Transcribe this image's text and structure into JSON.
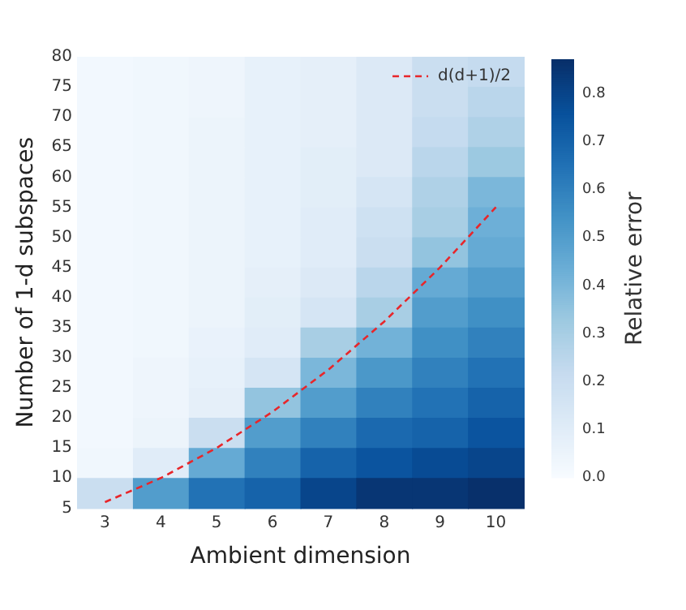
{
  "chart_data": {
    "type": "heatmap",
    "xlabel": "Ambient dimension",
    "ylabel": "Number of 1-d subspaces",
    "clabel": "Relative error",
    "categories": [
      "3",
      "4",
      "5",
      "6",
      "7",
      "8",
      "9",
      "10"
    ],
    "ylim": [
      5,
      80
    ],
    "yticks": [
      5,
      10,
      15,
      20,
      25,
      30,
      35,
      40,
      45,
      50,
      55,
      60,
      65,
      70,
      75,
      80
    ],
    "cells": [
      [
        0.02,
        0.03,
        0.04,
        0.07,
        0.08,
        0.12,
        0.2,
        0.22
      ],
      [
        0.02,
        0.03,
        0.04,
        0.07,
        0.08,
        0.12,
        0.2,
        0.25
      ],
      [
        0.02,
        0.03,
        0.05,
        0.07,
        0.08,
        0.12,
        0.22,
        0.28
      ],
      [
        0.02,
        0.03,
        0.05,
        0.07,
        0.09,
        0.12,
        0.25,
        0.33
      ],
      [
        0.02,
        0.03,
        0.05,
        0.07,
        0.09,
        0.15,
        0.28,
        0.4
      ],
      [
        0.02,
        0.03,
        0.05,
        0.07,
        0.1,
        0.18,
        0.3,
        0.43
      ],
      [
        0.02,
        0.03,
        0.05,
        0.07,
        0.1,
        0.2,
        0.35,
        0.45
      ],
      [
        0.02,
        0.03,
        0.05,
        0.08,
        0.12,
        0.25,
        0.45,
        0.5
      ],
      [
        0.02,
        0.03,
        0.05,
        0.09,
        0.15,
        0.3,
        0.5,
        0.55
      ],
      [
        0.02,
        0.03,
        0.06,
        0.1,
        0.3,
        0.42,
        0.55,
        0.6
      ],
      [
        0.02,
        0.04,
        0.07,
        0.15,
        0.4,
        0.52,
        0.6,
        0.65
      ],
      [
        0.02,
        0.04,
        0.08,
        0.35,
        0.5,
        0.6,
        0.65,
        0.7
      ],
      [
        0.02,
        0.05,
        0.2,
        0.5,
        0.6,
        0.68,
        0.7,
        0.75
      ],
      [
        0.03,
        0.1,
        0.45,
        0.6,
        0.7,
        0.75,
        0.78,
        0.8
      ],
      [
        0.2,
        0.5,
        0.65,
        0.7,
        0.8,
        0.85,
        0.85,
        0.88
      ]
    ],
    "clim": [
      0,
      0.87
    ],
    "cticks": [
      {
        "value": 0,
        "label": "0.0"
      },
      0.1,
      0.2,
      0.3,
      0.4,
      0.5,
      0.6,
      0.7,
      0.8
    ],
    "series": [
      {
        "name": "d(d+1)/2",
        "type": "line",
        "color": "#e8262a",
        "line_style": "dashed",
        "values": [
          6,
          10,
          15,
          21,
          28,
          36,
          45,
          55
        ]
      }
    ],
    "legend": "top right",
    "grid": false
  }
}
